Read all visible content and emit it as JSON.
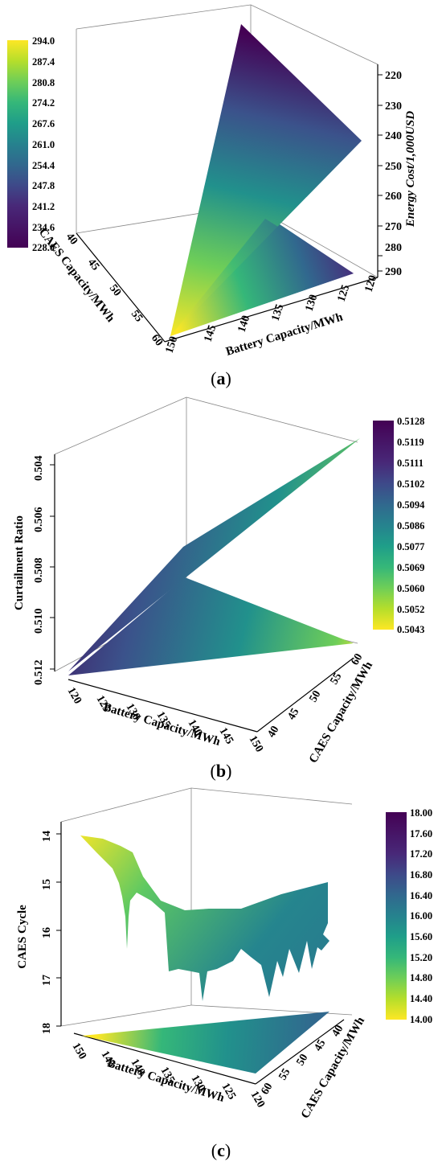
{
  "chart_data": [
    {
      "id": "a",
      "type": "surface3d",
      "caption": "a",
      "xlabel": "Battery Capacity/MWh",
      "ylabel": "CAES Capacity/MWh",
      "zlabel": "Energy Cost/1,000USD",
      "x_ticks": [
        "120",
        "125",
        "130",
        "135",
        "140",
        "145",
        "150"
      ],
      "y_ticks": [
        "40",
        "45",
        "50",
        "55",
        "60"
      ],
      "z_ticks": [
        "220",
        "230",
        "240",
        "250",
        "260",
        "270",
        "280",
        "290"
      ],
      "colorbar": {
        "ticks": [
          "294.0",
          "287.4",
          "280.8",
          "274.2",
          "267.6",
          "261.0",
          "254.4",
          "247.8",
          "241.2",
          "234.6",
          "228.0"
        ],
        "min": 228.0,
        "max": 294.0,
        "colormap": "viridis"
      },
      "surface_corners": [
        {
          "battery": 150,
          "caes": 60,
          "energy_cost": 294
        },
        {
          "battery": 120,
          "caes": 60,
          "energy_cost": 228
        },
        {
          "battery": 150,
          "caes": 40,
          "energy_cost": 228
        },
        {
          "battery": 120,
          "caes": 40,
          "energy_cost": 240
        }
      ]
    },
    {
      "id": "b",
      "type": "surface3d",
      "caption": "b",
      "xlabel": "Battery Capacity/MWh",
      "ylabel": "CAES Capacity/MWh",
      "zlabel": "Curtailment Ratio",
      "x_ticks": [
        "120",
        "125",
        "130",
        "135",
        "140",
        "145",
        "150"
      ],
      "y_ticks": [
        "40",
        "45",
        "50",
        "55",
        "60"
      ],
      "z_ticks": [
        "0.504",
        "0.506",
        "0.508",
        "0.510",
        "0.512"
      ],
      "colorbar": {
        "ticks": [
          "0.5128",
          "0.5119",
          "0.5111",
          "0.5102",
          "0.5094",
          "0.5086",
          "0.5077",
          "0.5069",
          "0.5060",
          "0.5052",
          "0.5043"
        ],
        "min": 0.5043,
        "max": 0.5128,
        "colormap": "viridis"
      },
      "surface_corners": [
        {
          "battery": 120,
          "caes": 40,
          "curtailment": 0.5128
        },
        {
          "battery": 120,
          "caes": 60,
          "curtailment": 0.51
        },
        {
          "battery": 150,
          "caes": 40,
          "curtailment": 0.509
        },
        {
          "battery": 150,
          "caes": 60,
          "curtailment": 0.5043
        }
      ]
    },
    {
      "id": "c",
      "type": "surface3d",
      "caption": "c",
      "xlabel": "Battery Capacity/MWh",
      "ylabel": "CAES Capacity/MWh",
      "zlabel": "CAES Cycle",
      "x_ticks": [
        "150",
        "145",
        "140",
        "135",
        "130",
        "125",
        "120"
      ],
      "y_ticks": [
        "40",
        "45",
        "50",
        "55",
        "60"
      ],
      "z_ticks": [
        "14",
        "15",
        "16",
        "17",
        "18"
      ],
      "colorbar": {
        "ticks": [
          "18.00",
          "17.60",
          "17.20",
          "16.80",
          "16.40",
          "16.00",
          "15.60",
          "15.20",
          "14.80",
          "14.40",
          "14.00"
        ],
        "min": 14.0,
        "max": 18.0,
        "colormap": "viridis"
      },
      "surface_corners": [
        {
          "battery": 150,
          "caes": 40,
          "caes_cycle": 14.0
        },
        {
          "battery": 120,
          "caes": 40,
          "caes_cycle": 15.2
        },
        {
          "battery": 150,
          "caes": 60,
          "caes_cycle": 17.0
        },
        {
          "battery": 120,
          "caes": 60,
          "caes_cycle": 16.2
        }
      ]
    }
  ]
}
